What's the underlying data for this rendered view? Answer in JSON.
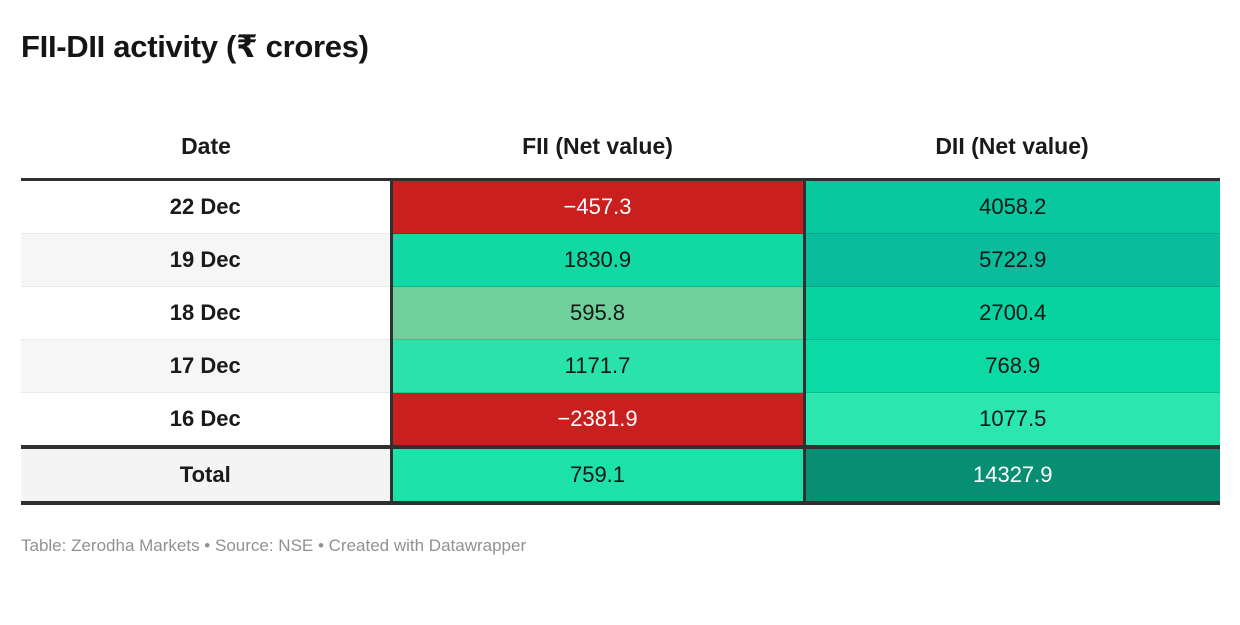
{
  "chart_data": {
    "type": "table",
    "title": "FII-DII activity (₹ crores)",
    "columns": [
      "Date",
      "FII (Net value)",
      "DII (Net value)"
    ],
    "rows": [
      {
        "date": "22 Dec",
        "fii": -457.3,
        "fii_display": "−457.3",
        "fii_bg": "#c9201f",
        "fii_text": "#ffffff",
        "dii": 4058.2,
        "dii_display": "4058.2",
        "dii_bg": "#09c89f",
        "dii_text": "#161616"
      },
      {
        "date": "19 Dec",
        "fii": 1830.9,
        "fii_display": "1830.9",
        "fii_bg": "#10d9a3",
        "fii_text": "#161616",
        "dii": 5722.9,
        "dii_display": "5722.9",
        "dii_bg": "#09bd9c",
        "dii_text": "#161616"
      },
      {
        "date": "18 Dec",
        "fii": 595.8,
        "fii_display": "595.8",
        "fii_bg": "#6fd09b",
        "fii_text": "#161616",
        "dii": 2700.4,
        "dii_display": "2700.4",
        "dii_bg": "#06d3a0",
        "dii_text": "#161616"
      },
      {
        "date": "17 Dec",
        "fii": 1171.7,
        "fii_display": "1171.7",
        "fii_bg": "#2ae3ab",
        "fii_text": "#161616",
        "dii": 768.9,
        "dii_display": "768.9",
        "dii_bg": "#0cdaa4",
        "dii_text": "#161616"
      },
      {
        "date": "16 Dec",
        "fii": -2381.9,
        "fii_display": "−2381.9",
        "fii_bg": "#c9201f",
        "fii_text": "#ffffff",
        "dii": 1077.5,
        "dii_display": "1077.5",
        "dii_bg": "#2be6ae",
        "dii_text": "#161616"
      }
    ],
    "total": {
      "label": "Total",
      "fii": 759.1,
      "fii_display": "759.1",
      "fii_bg": "#1ce2a9",
      "fii_text": "#161616",
      "dii": 14327.9,
      "dii_display": "14327.9",
      "dii_bg": "#088e72",
      "dii_text": "#ffffff"
    },
    "footer": "Table: Zerodha Markets • Source: NSE • Created with Datawrapper",
    "layout_hints": {
      "zebra_row_color": "#f6f6f6",
      "rule_color": "#303030",
      "negative_color": "#c9201f",
      "legend": "none",
      "grid": "off"
    }
  }
}
